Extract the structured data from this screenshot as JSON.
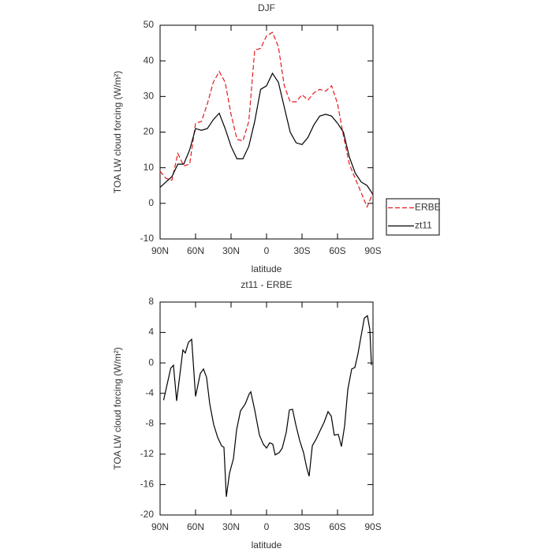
{
  "chart_data": [
    {
      "type": "line",
      "title": "DJF",
      "xlabel": "latitude",
      "ylabel": "TOA LW cloud forcing (W/m²)",
      "x": [
        90,
        85,
        80,
        75,
        70,
        65,
        60,
        55,
        50,
        45,
        40,
        35,
        30,
        25,
        20,
        15,
        10,
        5,
        0,
        -5,
        -10,
        -15,
        -20,
        -25,
        -30,
        -35,
        -40,
        -45,
        -50,
        -55,
        -60,
        -65,
        -70,
        -75,
        -80,
        -85,
        -90
      ],
      "series": [
        {
          "name": "ERBE",
          "color": "#e41a1c",
          "line_style": "dashed",
          "values": [
            9,
            7,
            6.5,
            14,
            10.5,
            11,
            22.5,
            23,
            28,
            34,
            37,
            34,
            25,
            18,
            17.5,
            23,
            43,
            43.5,
            47,
            48,
            44,
            33,
            28.5,
            28.5,
            30.5,
            29,
            31,
            32,
            31.5,
            33,
            28,
            19,
            11,
            7,
            3,
            -1,
            3
          ]
        },
        {
          "name": "zt11",
          "color": "#000000",
          "line_style": "solid",
          "values": [
            4.5,
            6,
            7.5,
            11,
            11,
            15,
            21,
            20.5,
            21,
            23.5,
            25.3,
            21,
            16,
            12.5,
            12.5,
            16,
            23,
            32,
            33,
            36.5,
            34,
            27,
            20,
            17,
            16.5,
            18.5,
            22,
            24.5,
            25,
            24.5,
            22.5,
            20,
            13,
            8.5,
            6,
            5,
            2.5
          ]
        }
      ],
      "xlim": [
        90,
        -90
      ],
      "xticks": [
        {
          "value": 90,
          "label": "90N"
        },
        {
          "value": 60,
          "label": "60N"
        },
        {
          "value": 30,
          "label": "30N"
        },
        0,
        {
          "value": -30,
          "label": "30S"
        },
        {
          "value": -60,
          "label": "60S"
        },
        {
          "value": -90,
          "label": "90S"
        }
      ],
      "ylim": [
        -10,
        50
      ],
      "yticks": [
        -10,
        0,
        10,
        20,
        30,
        40,
        50
      ],
      "grid": false,
      "legend": "outside-right"
    },
    {
      "type": "line",
      "title": "zt11 - ERBE",
      "xlabel": "latitude",
      "ylabel": "TOA LW cloud forcing (W/m²)",
      "x": [
        87,
        81,
        78.7,
        76,
        70.7,
        68.7,
        66,
        63.3,
        60,
        56,
        53.3,
        50.7,
        48,
        44.7,
        41.3,
        38,
        36,
        34,
        31.3,
        28,
        25.3,
        22,
        18,
        14.7,
        13.3,
        10,
        6,
        2.7,
        0,
        -2.7,
        -5.3,
        -7.3,
        -10.7,
        -13.3,
        -16.7,
        -19.3,
        -22,
        -24.7,
        -28,
        -31.3,
        -34,
        -36,
        -38.7,
        -42,
        -45.3,
        -48.7,
        -52,
        -54.7,
        -57.3,
        -60.7,
        -63.3,
        -66,
        -68.7,
        -72,
        -74.7,
        -77.3,
        -80,
        -82.7,
        -85.3,
        -87.3,
        -88.7
      ],
      "values": [
        -4.9,
        -0.7,
        -0.3,
        -5,
        1.7,
        1.3,
        2.7,
        3.1,
        -4.4,
        -1.4,
        -0.8,
        -1.9,
        -5.4,
        -8.1,
        -9.8,
        -10.9,
        -11.1,
        -17.6,
        -14.5,
        -12.6,
        -8.8,
        -6.3,
        -5.4,
        -4.1,
        -3.8,
        -6.2,
        -9.5,
        -10.7,
        -11.2,
        -10.5,
        -10.7,
        -12.1,
        -11.8,
        -11.2,
        -9.1,
        -6.2,
        -6.1,
        -8.1,
        -10.2,
        -11.8,
        -13.8,
        -14.9,
        -10.9,
        -10,
        -8.9,
        -7.8,
        -6.4,
        -7,
        -9.5,
        -9.4,
        -11,
        -8.3,
        -3.5,
        -0.8,
        -0.6,
        1.2,
        3.6,
        5.9,
        6.2,
        4.4,
        -0.3
      ],
      "color": "#000000",
      "xlim": [
        90,
        -90
      ],
      "xticks": [
        {
          "value": 90,
          "label": "90N"
        },
        {
          "value": 60,
          "label": "60N"
        },
        {
          "value": 30,
          "label": "30N"
        },
        0,
        {
          "value": -30,
          "label": "30S"
        },
        {
          "value": -60,
          "label": "60S"
        },
        {
          "value": -90,
          "label": "90S"
        }
      ],
      "ylim": [
        -20,
        8
      ],
      "yticks": [
        -20,
        -16,
        -12,
        -8,
        -4,
        0,
        4,
        8
      ],
      "grid": false
    }
  ]
}
